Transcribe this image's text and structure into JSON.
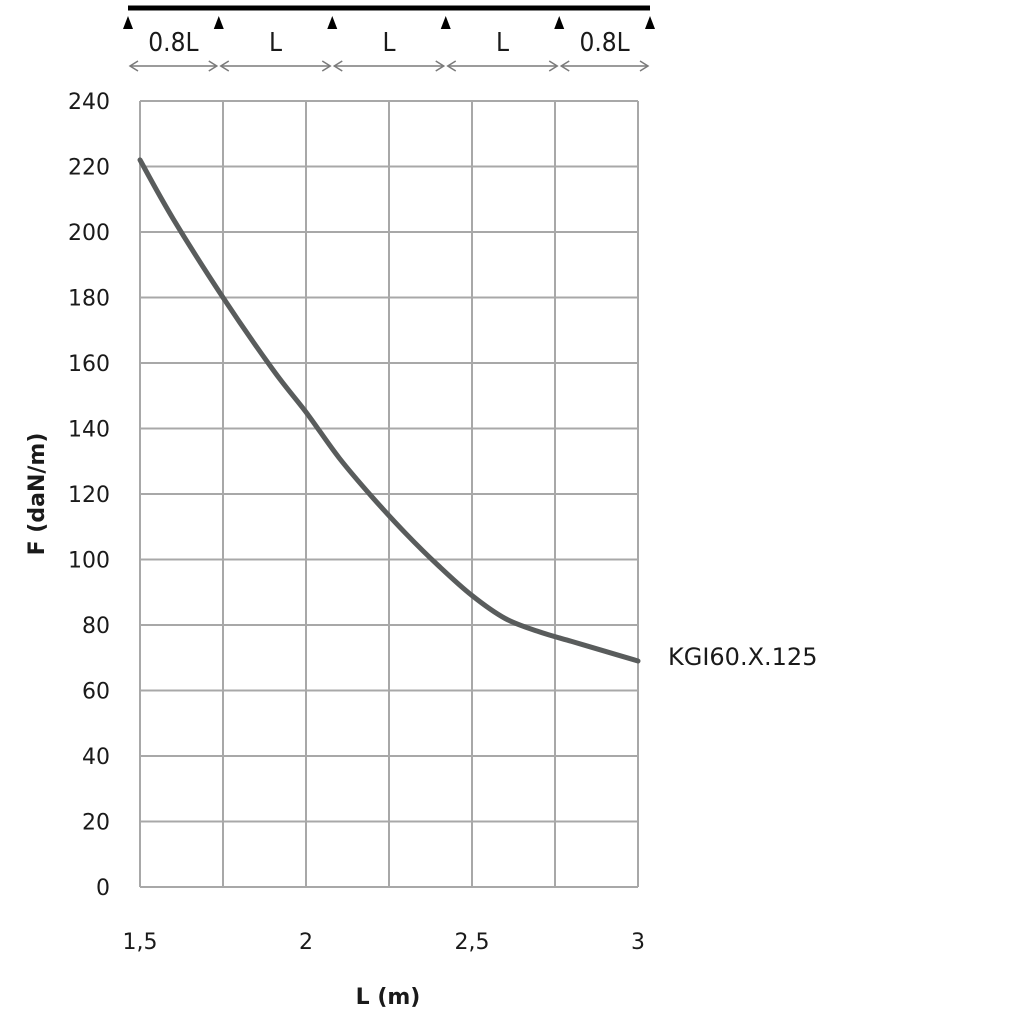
{
  "beam_diagram": {
    "span_labels": [
      "0.8L",
      "L",
      "L",
      "L",
      "0.8L"
    ],
    "span_ratios": [
      0.8,
      1,
      1,
      1,
      0.8
    ]
  },
  "chart_data": {
    "type": "line",
    "xlabel": "L (m)",
    "ylabel": "F (daN/m)",
    "xlim": [
      1.5,
      3
    ],
    "ylim": [
      0,
      240
    ],
    "x_ticks": [
      1.5,
      2,
      2.5,
      3
    ],
    "x_tick_labels": [
      "1,5",
      "2",
      "2,5",
      "3"
    ],
    "y_ticks": [
      0,
      20,
      40,
      60,
      80,
      100,
      120,
      140,
      160,
      180,
      200,
      220,
      240
    ],
    "y_tick_labels": [
      "0",
      "20",
      "40",
      "60",
      "80",
      "100",
      "120",
      "140",
      "160",
      "180",
      "200",
      "220",
      "240"
    ],
    "x_gridlines": [
      1.5,
      1.75,
      2,
      2.25,
      2.5,
      2.75,
      3
    ],
    "grid": true,
    "series": [
      {
        "name": "KGI60.X.125",
        "color": "#595c5c",
        "x": [
          1.5,
          1.6,
          1.75,
          1.9,
          2.0,
          2.1,
          2.2,
          2.3,
          2.4,
          2.5,
          2.6,
          2.7,
          2.8,
          2.9,
          3.0
        ],
        "y": [
          222,
          204,
          180,
          158,
          145,
          131,
          119,
          108,
          98,
          89,
          82,
          78,
          75,
          72,
          69
        ]
      }
    ]
  }
}
